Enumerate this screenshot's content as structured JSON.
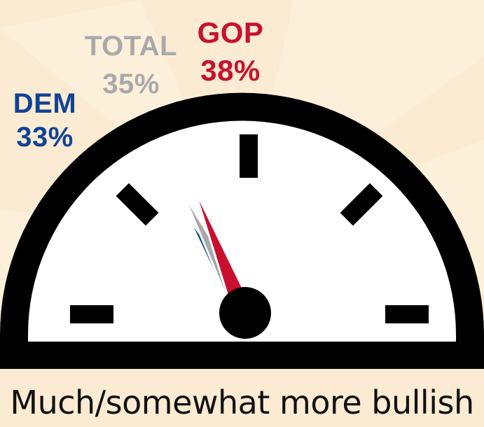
{
  "chart_data": {
    "type": "gauge",
    "series": [
      {
        "name": "DEM",
        "value": 33,
        "label": "33%",
        "color": "#0f4396"
      },
      {
        "name": "TOTAL",
        "value": 35,
        "label": "35%",
        "color": "#a9a9a9"
      },
      {
        "name": "GOP",
        "value": 38,
        "label": "38%",
        "color": "#c8102e"
      }
    ],
    "caption": "Much/somewhat more bullish",
    "gauge_color": "#000000",
    "face_color": "#ffffff",
    "background_color": "#fcebd3"
  }
}
